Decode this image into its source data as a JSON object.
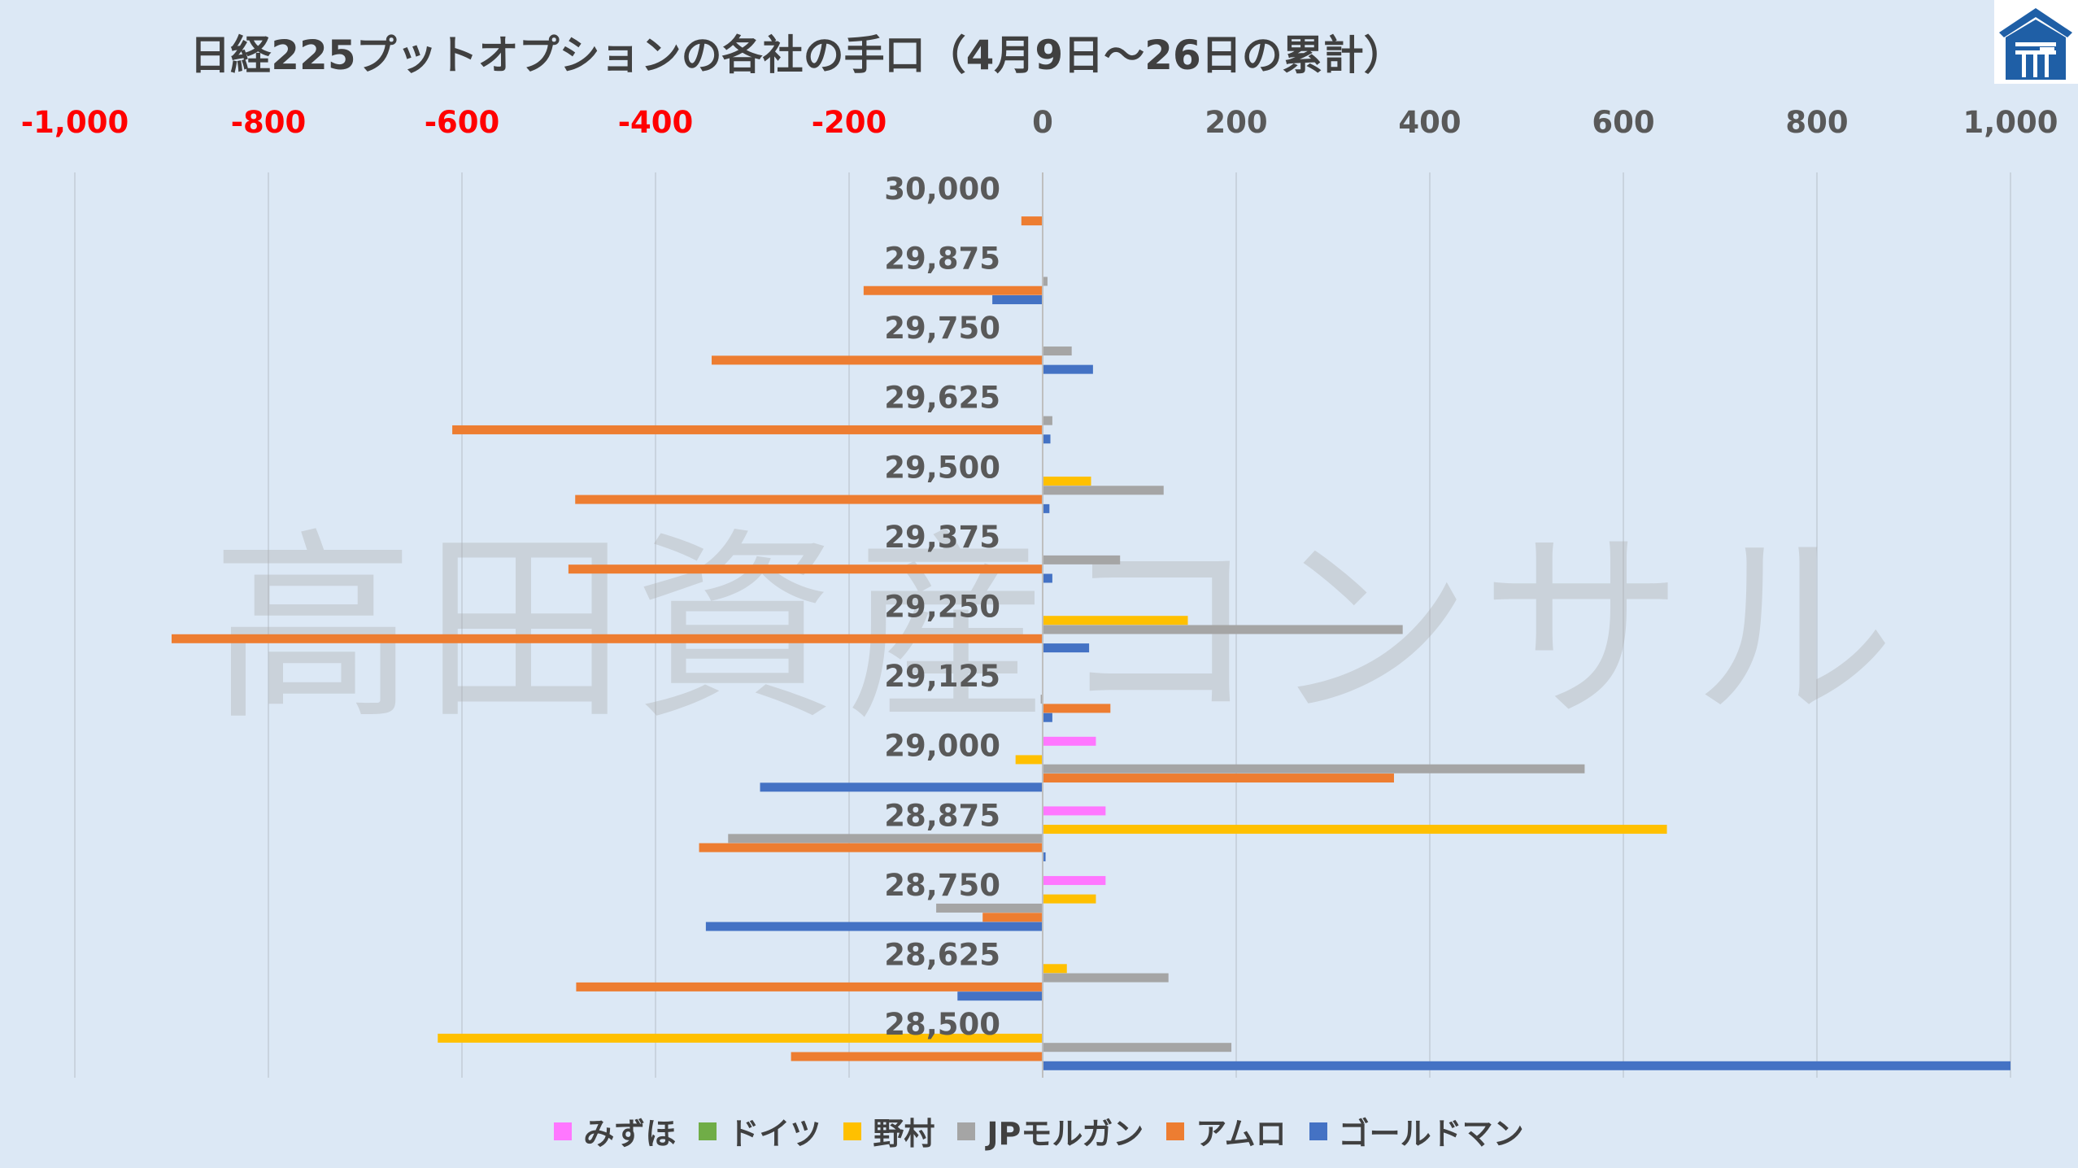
{
  "title": "日経225プットオプションの各社の手口（4月9日～26日の累計）",
  "watermark": "高田資産コンサル",
  "chart_data": {
    "type": "bar",
    "orientation": "horizontal",
    "title": "日経225プットオプションの各社の手口（4月9日～26日の累計）",
    "xlim": [
      -1000,
      1000
    ],
    "xticks": [
      -1000,
      -800,
      -600,
      -400,
      -200,
      0,
      200,
      400,
      600,
      800,
      1000
    ],
    "xtick_labels": [
      "-1,000",
      "-800",
      "-600",
      "-400",
      "-200",
      "0",
      "200",
      "400",
      "600",
      "800",
      "1,000"
    ],
    "negative_tick_color": "#ff0000",
    "positive_tick_color": "#595959",
    "grid": "vertical",
    "legend_position": "bottom",
    "categories": [
      "30,000",
      "29,875",
      "29,750",
      "29,625",
      "29,500",
      "29,375",
      "29,250",
      "29,125",
      "29,000",
      "28,875",
      "28,750",
      "28,625",
      "28,500"
    ],
    "series": [
      {
        "name": "みずほ",
        "color": "#ff77ff",
        "values": [
          0,
          0,
          0,
          0,
          0,
          0,
          0,
          0,
          55,
          65,
          65,
          0,
          0
        ]
      },
      {
        "name": "ドイツ",
        "color": "#70ad47",
        "values": [
          0,
          0,
          0,
          0,
          0,
          0,
          0,
          0,
          0,
          0,
          0,
          0,
          0
        ]
      },
      {
        "name": "野村",
        "color": "#ffc000",
        "values": [
          0,
          0,
          0,
          0,
          50,
          0,
          150,
          0,
          -28,
          645,
          55,
          25,
          -625
        ]
      },
      {
        "name": "JPモルガン",
        "color": "#a5a5a5",
        "values": [
          0,
          5,
          30,
          10,
          125,
          80,
          372,
          -2,
          560,
          -325,
          -110,
          130,
          195
        ]
      },
      {
        "name": "アムロ",
        "color": "#ed7d31",
        "values": [
          -22,
          -185,
          -342,
          -610,
          -483,
          -490,
          -900,
          70,
          363,
          -355,
          -62,
          -482,
          -260
        ]
      },
      {
        "name": "ゴールドマン",
        "color": "#4472c4",
        "values": [
          0,
          -52,
          52,
          8,
          7,
          10,
          48,
          10,
          -292,
          3,
          -348,
          -88,
          1000
        ]
      }
    ]
  }
}
